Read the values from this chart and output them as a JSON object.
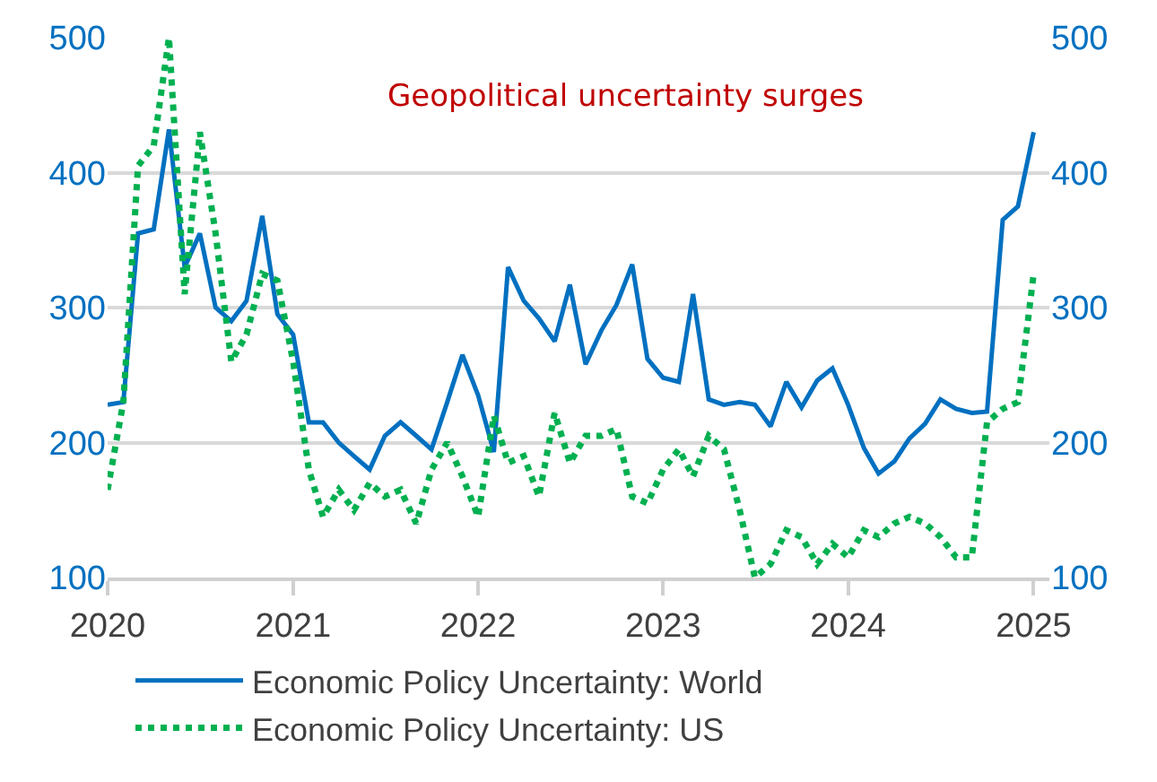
{
  "chart_data": {
    "type": "line",
    "x": [
      "2020-01",
      "2020-02",
      "2020-03",
      "2020-04",
      "2020-05",
      "2020-06",
      "2020-07",
      "2020-08",
      "2020-09",
      "2020-10",
      "2020-11",
      "2020-12",
      "2021-01",
      "2021-02",
      "2021-03",
      "2021-04",
      "2021-05",
      "2021-06",
      "2021-07",
      "2021-08",
      "2021-09",
      "2021-10",
      "2021-11",
      "2021-12",
      "2022-01",
      "2022-02",
      "2022-03",
      "2022-04",
      "2022-05",
      "2022-06",
      "2022-07",
      "2022-08",
      "2022-09",
      "2022-10",
      "2022-11",
      "2022-12",
      "2023-01",
      "2023-02",
      "2023-03",
      "2023-04",
      "2023-05",
      "2023-06",
      "2023-07",
      "2023-08",
      "2023-09",
      "2023-10",
      "2023-11",
      "2023-12",
      "2024-01",
      "2024-02",
      "2024-03",
      "2024-04",
      "2024-05",
      "2024-06",
      "2024-07",
      "2024-08",
      "2024-09",
      "2024-10",
      "2024-11",
      "2024-12",
      "2025-01"
    ],
    "series": [
      {
        "name": "Economic Policy Uncertainty: World",
        "color": "#0070c0",
        "line_style": "solid",
        "values": [
          228,
          230,
          355,
          358,
          432,
          330,
          355,
          300,
          290,
          305,
          368,
          295,
          280,
          215,
          215,
          200,
          190,
          180,
          205,
          215,
          205,
          195,
          230,
          265,
          235,
          193,
          330,
          305,
          292,
          275,
          317,
          258,
          283,
          302,
          332,
          262,
          248,
          245,
          310,
          232,
          228,
          230,
          228,
          212,
          245,
          226,
          246,
          255,
          228,
          196,
          177,
          186,
          203,
          214,
          232,
          225,
          222,
          223,
          365,
          375,
          430
        ]
      },
      {
        "name": "Economic Policy Uncertainty: US",
        "color": "#00b050",
        "line_style": "dotted",
        "axis": "y2",
        "values": [
          165,
          230,
          405,
          420,
          500,
          310,
          430,
          355,
          260,
          280,
          325,
          320,
          260,
          180,
          145,
          165,
          150,
          170,
          160,
          165,
          140,
          180,
          200,
          175,
          145,
          220,
          185,
          190,
          160,
          222,
          185,
          205,
          205,
          210,
          160,
          155,
          180,
          195,
          175,
          205,
          195,
          150,
          100,
          110,
          135,
          130,
          110,
          125,
          115,
          135,
          130,
          140,
          145,
          140,
          130,
          115,
          115,
          215,
          225,
          230,
          325
        ]
      }
    ],
    "xlim": [
      "2020-01-01",
      "2025-02-01"
    ],
    "xticks": [
      "2020",
      "2021",
      "2022",
      "2023",
      "2024",
      "2025"
    ],
    "ylim": [
      100,
      500
    ],
    "yticks": [
      100,
      200,
      300,
      400,
      500
    ],
    "y2lim": [
      100,
      500
    ],
    "y2ticks": [
      100,
      200,
      300,
      400,
      500
    ],
    "annotations": [
      "Geopolitical uncertainty surges"
    ],
    "grid": "y",
    "legend": "bottom"
  }
}
